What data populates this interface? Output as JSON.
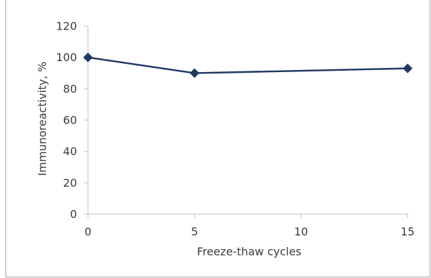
{
  "chart_data": {
    "type": "line",
    "title": "",
    "xlabel": "Freeze-thaw cycles",
    "ylabel": "Immunoreactivity, %",
    "x": [
      0,
      5,
      15
    ],
    "series": [
      {
        "values": [
          100,
          90,
          93
        ],
        "color": "#1f3864",
        "marker": "diamond"
      }
    ],
    "xlim": [
      0,
      15
    ],
    "ylim": [
      0,
      120
    ],
    "xticks": [
      0,
      5,
      10,
      15
    ],
    "yticks": [
      0,
      20,
      40,
      60,
      80,
      100,
      120
    ],
    "grid": false,
    "legend": "none"
  },
  "colors": {
    "axis": "#bfbfbf",
    "text": "#3b3b3b",
    "series": "#1f3864"
  }
}
